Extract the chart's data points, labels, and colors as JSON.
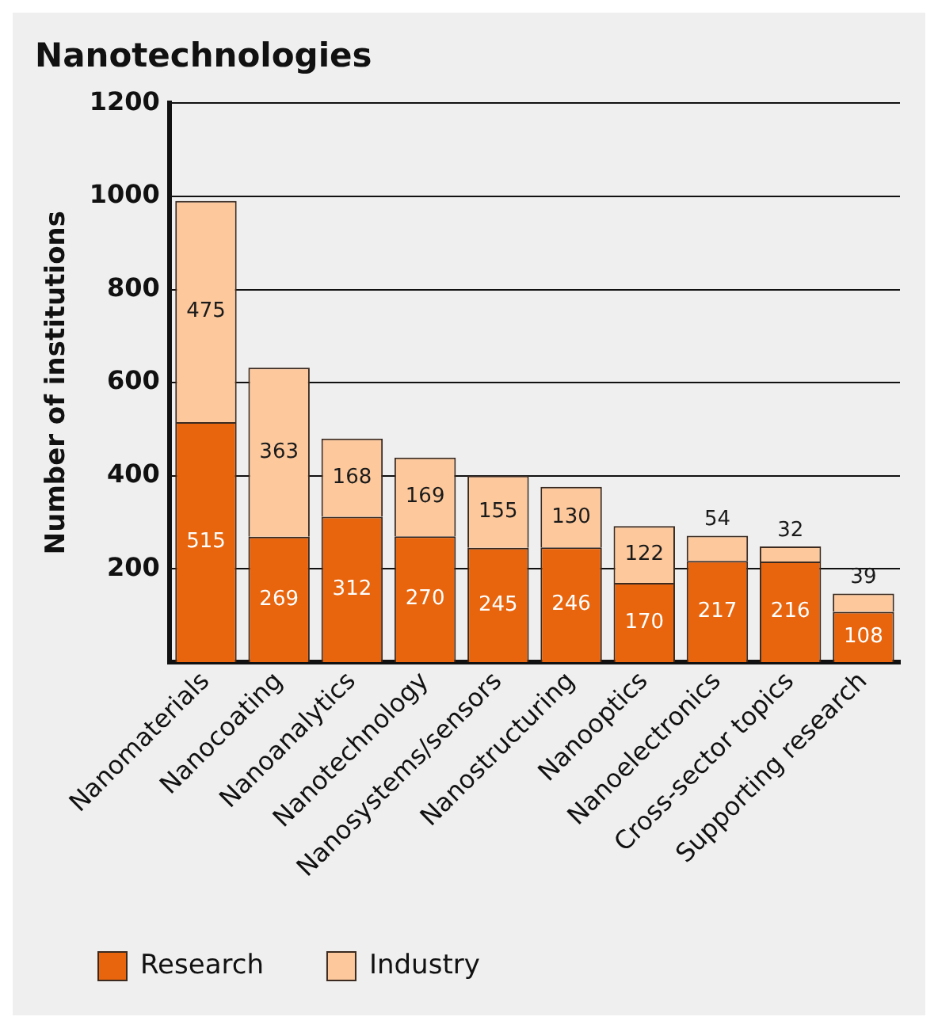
{
  "chart_data": {
    "type": "bar",
    "title": "Nanotechnologies",
    "ylabel": "Number of institutions",
    "categories": [
      "Nanomaterials",
      "Nanocoating",
      "Nanoanalytics",
      "Nanotechnology",
      "Nanosystems/sensors",
      "Nanostructuring",
      "Nanooptics",
      "Nanoelectronics",
      "Cross-sector topics",
      "Supporting research"
    ],
    "series": [
      {
        "name": "Research",
        "color": "#e8650e",
        "values": [
          515,
          269,
          312,
          270,
          245,
          246,
          170,
          217,
          216,
          108
        ]
      },
      {
        "name": "Industry",
        "color": "#fcc89c",
        "values": [
          475,
          363,
          168,
          169,
          155,
          130,
          122,
          54,
          32,
          39
        ]
      }
    ],
    "stacked": true,
    "ylim": [
      0,
      1200
    ],
    "yticks": [
      200,
      400,
      600,
      800,
      1000,
      1200
    ],
    "grid": "y",
    "legend": "bottom",
    "data_labels": true
  }
}
